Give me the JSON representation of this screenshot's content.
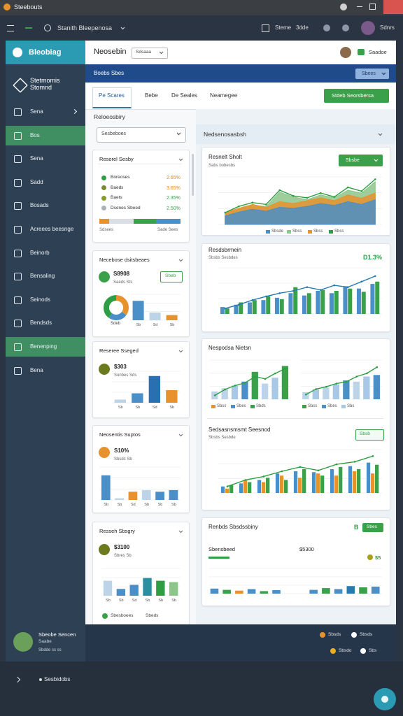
{
  "window": {
    "title": "Steebouts"
  },
  "toolbar": {
    "search": "Stanith Bleepenosa",
    "items": [
      "Steme",
      "3dde"
    ],
    "user": "Sdnrs"
  },
  "sidebar": {
    "brand": "Bleobiag",
    "workspace": "Stetmomis Stomnd",
    "nav": [
      {
        "label": "Sena"
      },
      {
        "label": "Bos",
        "active": true
      },
      {
        "label": "Sena"
      },
      {
        "label": "Sadd"
      },
      {
        "label": "Bosads"
      },
      {
        "label": "Acreees beesnge"
      },
      {
        "label": "Beinorb"
      },
      {
        "label": "Bensaling"
      },
      {
        "label": "Seinods"
      },
      {
        "label": "Bendsds"
      },
      {
        "label": "Benenping",
        "active": true
      },
      {
        "label": "Bena"
      }
    ]
  },
  "header": {
    "title": "Neosebin",
    "filter": "Sdsaaa",
    "user": "Saadoe"
  },
  "banner": {
    "title": "Boebs Sbes",
    "button": "Sbees"
  },
  "tabs": [
    {
      "label": "Pe Scares",
      "active": true
    },
    {
      "label": "Bebe"
    },
    {
      "label": "De Seales"
    },
    {
      "label": "Neamegee"
    }
  ],
  "action": "Stdeb Seorsbersa",
  "left": {
    "heading": "Reloeosbiry",
    "select": "Sesbeboes",
    "cards": [
      {
        "title": "Resorel Sesby",
        "items": [
          {
            "label": "Boreoses",
            "value": "2.65%",
            "color": "#2e9e44",
            "value_color": "#e08a20"
          },
          {
            "label": "Baeds",
            "value": "3.65%",
            "color": "#7a8a2e",
            "value_color": "#e08a20"
          },
          {
            "label": "Baets",
            "value": "2.35%",
            "color": "#8a9a2a",
            "value_color": "#3aa04a"
          },
          {
            "label": "Dsenes Sbeed",
            "value": "2.50%",
            "color": "#aab0b8",
            "value_color": "#3aa04a"
          }
        ],
        "progress": {
          "max": 100,
          "segments": [
            {
              "value": 12,
              "color": "#e8922e"
            },
            {
              "value": 30,
              "color": "#d9dee4"
            },
            {
              "value": 28,
              "color": "#3aa04a"
            },
            {
              "value": 30,
              "color": "#4a8fc8"
            }
          ]
        },
        "notes": [
          "Sdsees",
          "Sade Sees"
        ]
      },
      {
        "title": "Necebose dsitsbeaes",
        "stat": "S8908",
        "stat_sub": "Saeds Sts",
        "badge": "Sbeb",
        "donut": {
          "label": "Sdeb",
          "values": [
            35,
            25,
            40
          ],
          "colors": [
            "#e8922e",
            "#4a8fc8",
            "#2e9e44"
          ]
        },
        "chart": {
          "ylim": [
            0,
            100
          ],
          "categories": [
            "Sb",
            "Sd",
            "Sb"
          ],
          "series": [
            {
              "kind": "bar",
              "colors": [
                "#4a8fc8",
                "#bcd3e8",
                "#e8922e"
              ],
              "values": [
                75,
                30,
                20
              ]
            }
          ]
        }
      },
      {
        "title": "Reseree Sseged",
        "stat": "$303",
        "stat_sub": "Sonbes Sds",
        "chart": {
          "ylim": [
            0,
            100
          ],
          "categories": [
            "Sb",
            "Sb",
            "Sd",
            "Sb"
          ],
          "series": [
            {
              "kind": "bar",
              "colors": [
                "#bcd3e8",
                "#4a8fc8",
                "#2a6fb0",
                "#e8922e"
              ],
              "values": [
                10,
                30,
                85,
                40
              ]
            }
          ]
        }
      },
      {
        "title": "Neosentis Suptos",
        "stat": "S10%",
        "stat_sub": "Sbsds Sb",
        "chart": {
          "ylim": [
            0,
            100
          ],
          "categories": [
            "Sb",
            "Sb",
            "Sd",
            "Sb",
            "Sb",
            "Sb"
          ],
          "series": [
            {
              "kind": "bar",
              "colors": [
                "#4a8fc8",
                "#bcd3e8",
                "#e8922e",
                "#bcd3e8",
                "#4a8fc8",
                "#4a8fc8"
              ],
              "values": [
                75,
                5,
                25,
                30,
                25,
                30
              ]
            }
          ]
        }
      },
      {
        "title": "Resseh Sbsgry",
        "stat": "$3100",
        "stat_sub": "Sbres Sb",
        "chart": {
          "ylim": [
            0,
            100
          ],
          "categories": [
            "Sb",
            "Sb",
            "Sd",
            "Sb",
            "Sb",
            "Sb"
          ],
          "series": [
            {
              "kind": "bar",
              "colors": [
                "#bcd3e8",
                "#4a8fc8",
                "#4a8fc8",
                "#2a8fa0",
                "#2e9e44",
                "#8cc68a"
              ],
              "values": [
                55,
                25,
                40,
                65,
                55,
                50
              ]
            }
          ]
        },
        "notes": [
          "Sbesboees",
          "Sbeds"
        ]
      }
    ]
  },
  "right": {
    "heading": "Nedsenosasbsh",
    "cards": [
      {
        "title": "Resnelt Sholt",
        "subtitle": "Sabs bobesbs",
        "badge": "Sbsbe",
        "chart": {
          "ylim": [
            0,
            100
          ],
          "series": [
            {
              "kind": "area",
              "color": "#8cc68a",
              "values": [
                22,
                32,
                40,
                38,
                68,
                58,
                52,
                62,
                56,
                72,
                66,
                90
              ]
            },
            {
              "kind": "area",
              "color": "#e8922e",
              "values": [
                25,
                34,
                42,
                36,
                48,
                44,
                50,
                56,
                50,
                62,
                55,
                66
              ]
            },
            {
              "kind": "area",
              "color": "#4a8fc8",
              "values": [
                18,
                26,
                32,
                28,
                36,
                34,
                38,
                44,
                40,
                48,
                42,
                52
              ]
            },
            {
              "kind": "line",
              "color": "#2e9e44",
              "values": [
                25,
                38,
                46,
                42,
                72,
                60,
                56,
                66,
                58,
                78,
                70,
                95
              ]
            }
          ],
          "legend": [
            {
              "label": "Sbsde",
              "color": "#4a8fc8"
            },
            {
              "label": "Sbss",
              "color": "#8cc68a"
            },
            {
              "label": "Sbss",
              "color": "#e8922e"
            },
            {
              "label": "Sbss",
              "color": "#2e9e44"
            }
          ]
        }
      },
      {
        "title": "Resdsbrmein",
        "subtitle": "Sbsbs Sesbdes",
        "stat": "D1.3%",
        "chart": {
          "ylim": [
            0,
            100
          ],
          "series": [
            {
              "kind": "bar",
              "color": "#4a8fc8",
              "values": [
                15,
                20,
                25,
                30,
                35,
                45,
                40,
                50,
                45,
                60,
                55,
                65
              ]
            },
            {
              "kind": "bar",
              "color": "#3aa04a",
              "values": [
                12,
                25,
                30,
                38,
                32,
                58,
                45,
                52,
                50,
                55,
                48,
                70
              ]
            },
            {
              "kind": "line",
              "color": "#2a7ab0",
              "values": [
                12,
                20,
                30,
                38,
                45,
                50,
                58,
                52,
                62,
                58,
                70,
                82
              ]
            }
          ]
        }
      },
      {
        "title": "Nespodsa Nietsn",
        "charts": [
          {
            "ylim": [
              0,
              100
            ],
            "series": [
              {
                "kind": "bar",
                "colors": [
                  "#bcd3e8",
                  "#bcd3e8",
                  "#a9c8e6",
                  "#4a8fc8",
                  "#3aa04a",
                  "#bcd3e8",
                  "#a9c8e6",
                  "#3aa04a"
                ],
                "values": [
                  20,
                  28,
                  35,
                  45,
                  70,
                  40,
                  55,
                  85
                ]
              },
              {
                "kind": "line",
                "color": "#2e9e44",
                "values": [
                  10,
                  25,
                  35,
                  42,
                  58,
                  52,
                  66,
                  78
                ]
              }
            ],
            "legend": [
              {
                "label": "Sbss",
                "color": "#e8922e"
              },
              {
                "label": "Sbes",
                "color": "#4a8fc8"
              },
              {
                "label": "Sbds",
                "color": "#3aa04a"
              }
            ]
          },
          {
            "ylim": [
              0,
              100
            ],
            "series": [
              {
                "kind": "bar",
                "colors": [
                  "#bcd3e8",
                  "#a9c8e6",
                  "#bcd3e8",
                  "#a9c8e6",
                  "#4a8fc8",
                  "#bcd3e8",
                  "#a9c8e6",
                  "#4a8fc8"
                ],
                "values": [
                  18,
                  25,
                  30,
                  38,
                  48,
                  45,
                  58,
                  62
                ]
              },
              {
                "kind": "line",
                "color": "#2e9e44",
                "values": [
                  12,
                  26,
                  32,
                  40,
                  45,
                  58,
                  66,
                  82
                ]
              }
            ],
            "legend": [
              {
                "label": "Sbss",
                "color": "#3aa04a"
              },
              {
                "label": "Sbes",
                "color": "#4a8fc8"
              },
              {
                "label": "Sbs",
                "color": "#a9c8e6"
              }
            ]
          }
        ]
      },
      {
        "title": "Sedsasnsmsmt Seesnod",
        "subtitle": "Sbsbs Sesbde",
        "badge": "Sbsb",
        "chart": {
          "ylim": [
            0,
            100
          ],
          "series": [
            {
              "kind": "bar",
              "color": "#4a8fc8",
              "values": [
                15,
                22,
                30,
                45,
                50,
                48,
                55,
                62,
                70
              ]
            },
            {
              "kind": "bar",
              "color": "#e8922e",
              "values": [
                10,
                30,
                25,
                40,
                35,
                45,
                40,
                50,
                45
              ]
            },
            {
              "kind": "bar",
              "color": "#3aa04a",
              "values": [
                18,
                25,
                35,
                30,
                55,
                40,
                60,
                55,
                65
              ]
            },
            {
              "kind": "line",
              "color": "#2e9e44",
              "values": [
                15,
                30,
                38,
                50,
                60,
                52,
                66,
                72,
                85
              ]
            }
          ]
        }
      },
      {
        "title": "Renbds Sbsdssbiny",
        "badge_icon": "B",
        "badge": "Sbes",
        "label": "Sbensbeed",
        "amount": "$5300",
        "stat": "$5",
        "chart": {
          "ylim": [
            0,
            100
          ],
          "series": [
            {
              "kind": "bar",
              "colors": [
                "#4a8fc8",
                "#3aa04a",
                "#e8922e",
                "#4a8fc8",
                "#3aa04a",
                "#4a8fc8",
                null,
                null,
                "#4a8fc8",
                "#3aa04a",
                "#4a8fc8",
                "#2a7ab0",
                "#3aa04a",
                "#4a8fc8"
              ],
              "values": [
                20,
                15,
                12,
                18,
                10,
                14,
                null,
                null,
                15,
                22,
                18,
                30,
                25,
                28
              ]
            }
          ]
        }
      }
    ]
  },
  "footer": {
    "name": "Sbeobe Sencen",
    "role": "Saabe",
    "meta": "Sbdde ss ss",
    "links": [
      "Sbsds",
      "Sbsds",
      "Sbsdo",
      "Sbs"
    ]
  },
  "bottom": {
    "label": "Sesbidobs"
  }
}
